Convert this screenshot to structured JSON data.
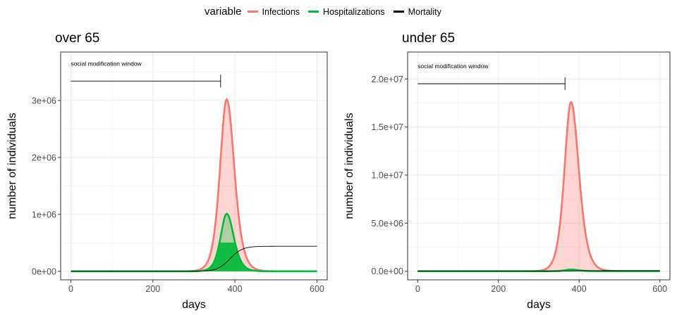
{
  "legend": {
    "title": "variable",
    "items": [
      {
        "label": "Infections",
        "color": "#F8766D"
      },
      {
        "label": "Hospitalizations",
        "color": "#00BA38"
      },
      {
        "label": "Mortality",
        "color": "#000000"
      }
    ]
  },
  "chart_data": [
    {
      "type": "area",
      "title": "over 65",
      "xlabel": "days",
      "ylabel": "number of individuals",
      "xlim": [
        -25,
        625
      ],
      "ylim": [
        -150000,
        3850000
      ],
      "xticks": [
        0,
        200,
        400,
        600
      ],
      "yticks": [
        0,
        1000000,
        2000000,
        3000000
      ],
      "ytick_labels": [
        "0e+00",
        "1e+06",
        "2e+06",
        "3e+06"
      ],
      "grid": true,
      "annotation": {
        "text": "social modification window",
        "start": 0,
        "end": 365,
        "y": 3340000
      },
      "series": [
        {
          "name": "Infections",
          "kind": "peak",
          "peak_day": 380,
          "peak": 3020000,
          "left_width": 22,
          "right_width": 25,
          "baseline": 0
        },
        {
          "name": "Hospitalizations",
          "kind": "peak",
          "peak_day": 380,
          "peak": 1010000,
          "left_width": 20,
          "right_width": 23,
          "baseline": 0
        },
        {
          "name": "Mortality",
          "kind": "cumulative",
          "midpoint": 388,
          "final": 440000,
          "scale": 15
        }
      ]
    },
    {
      "type": "area",
      "title": "under 65",
      "xlabel": "days",
      "ylabel": "number of individuals",
      "xlim": [
        -25,
        625
      ],
      "ylim": [
        -900000,
        22800000
      ],
      "xticks": [
        0,
        200,
        400,
        600
      ],
      "yticks": [
        0,
        5000000,
        10000000,
        15000000,
        20000000
      ],
      "ytick_labels": [
        "0.0e+00",
        "5.0e+06",
        "1.0e+07",
        "1.5e+07",
        "2.0e+07"
      ],
      "grid": true,
      "annotation": {
        "text": "social modification window",
        "start": 0,
        "end": 365,
        "y": 19500000
      },
      "series": [
        {
          "name": "Infections",
          "kind": "peak",
          "peak_day": 380,
          "peak": 17600000,
          "left_width": 22,
          "right_width": 26,
          "baseline": 0
        },
        {
          "name": "Hospitalizations",
          "kind": "peak",
          "peak_day": 380,
          "peak": 180000,
          "left_width": 20,
          "right_width": 23,
          "baseline": 0
        },
        {
          "name": "Mortality",
          "kind": "cumulative",
          "midpoint": 388,
          "final": 60000,
          "scale": 15
        }
      ]
    }
  ]
}
